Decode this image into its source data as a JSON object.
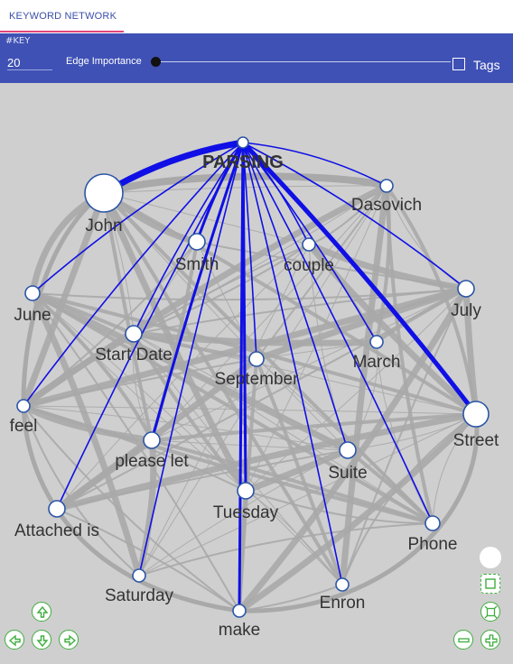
{
  "tabs": [
    {
      "label": "KEYWORD NETWORK",
      "active": true
    }
  ],
  "toolbar": {
    "key_label": "#KEY",
    "key_value": "20",
    "edge_label": "Edge Importance",
    "edge_importance": 0,
    "tags_label": "Tags",
    "tags_checked": false
  },
  "colors": {
    "toolbar": "#3f51b5",
    "highlight_edge": "#0f0fe6",
    "edge": "#a8a8a8",
    "node_stroke": "#2b55a7",
    "canvas": "#cfcfcf",
    "tab_underline": "#e0477a",
    "control": "#3fae3f"
  },
  "network": {
    "nodes": [
      {
        "id": "parsing",
        "label": "PARSING",
        "focus": true
      },
      {
        "id": "john",
        "label": "John"
      },
      {
        "id": "dasovich",
        "label": "Dasovich"
      },
      {
        "id": "smith",
        "label": "Smith"
      },
      {
        "id": "couple",
        "label": "couple"
      },
      {
        "id": "june",
        "label": "June"
      },
      {
        "id": "july",
        "label": "July"
      },
      {
        "id": "startdate",
        "label": "Start Date"
      },
      {
        "id": "march",
        "label": "March"
      },
      {
        "id": "september",
        "label": "September"
      },
      {
        "id": "feel",
        "label": "feel"
      },
      {
        "id": "street",
        "label": "Street"
      },
      {
        "id": "pleaselet",
        "label": "please let"
      },
      {
        "id": "suite",
        "label": "Suite"
      },
      {
        "id": "tuesday",
        "label": "Tuesday"
      },
      {
        "id": "attachedis",
        "label": "Attached is"
      },
      {
        "id": "phone",
        "label": "Phone"
      },
      {
        "id": "saturday",
        "label": "Saturday"
      },
      {
        "id": "enron",
        "label": "Enron"
      },
      {
        "id": "make",
        "label": "make"
      }
    ]
  },
  "controls": {
    "nav": [
      {
        "name": "pan-up-button",
        "icon": "arrow-up-icon"
      },
      {
        "name": "pan-left-button",
        "icon": "arrow-left-icon"
      },
      {
        "name": "pan-down-button",
        "icon": "arrow-down-icon"
      },
      {
        "name": "pan-right-button",
        "icon": "arrow-right-icon"
      }
    ],
    "view": [
      {
        "name": "zoom-extent-button",
        "icon": "zoom-extent-icon"
      },
      {
        "name": "zoom-fit-button",
        "icon": "fit-icon"
      },
      {
        "name": "zoom-out-button",
        "icon": "minus-icon"
      },
      {
        "name": "zoom-in-button",
        "icon": "plus-icon"
      }
    ]
  }
}
